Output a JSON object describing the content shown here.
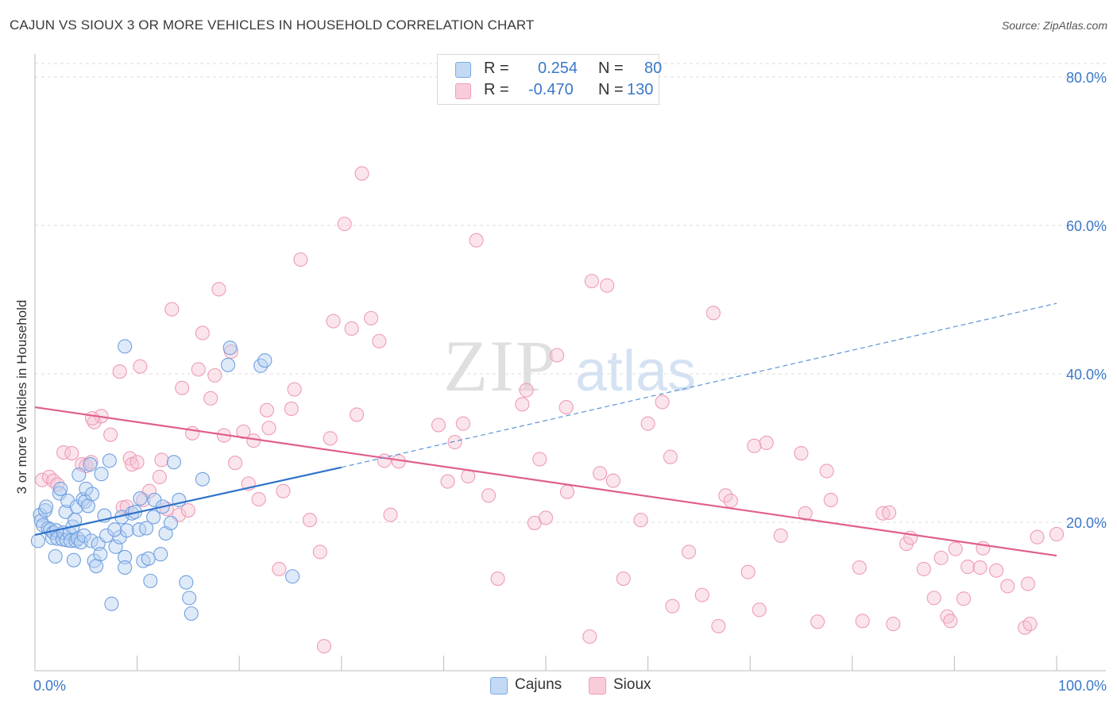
{
  "header": {
    "title": "CAJUN VS SIOUX 3 OR MORE VEHICLES IN HOUSEHOLD CORRELATION CHART",
    "source": "Source: ZipAtlas.com"
  },
  "legend": {
    "rows": [
      {
        "r_label": "R =",
        "r_value": "0.254",
        "n_label": "N =",
        "n_value": "80",
        "color": "#a8c8ef"
      },
      {
        "r_label": "R =",
        "r_value": "-0.470",
        "n_label": "N =",
        "n_value": "130",
        "color": "#f5b8cb"
      }
    ]
  },
  "bottom_legend": {
    "items": [
      {
        "label": "Cajuns",
        "color": "#a8c8ef"
      },
      {
        "label": "Sioux",
        "color": "#f5b8cb"
      }
    ]
  },
  "chart_data": {
    "type": "scatter",
    "title": "CAJUN VS SIOUX 3 OR MORE VEHICLES IN HOUSEHOLD CORRELATION CHART",
    "xlabel": "",
    "ylabel": "3 or more Vehicles in Household",
    "xlim": [
      0,
      100
    ],
    "ylim": [
      0,
      80
    ],
    "x_tick_labels": [
      "0.0%",
      "100.0%"
    ],
    "y_ticks": [
      20,
      40,
      60,
      80
    ],
    "y_tick_labels": [
      "20.0%",
      "40.0%",
      "60.0%",
      "80.0%"
    ],
    "grid": true,
    "legend_placement": "top-center",
    "watermark": "ZIPatlas",
    "series": [
      {
        "name": "Cajuns",
        "color": "#6fa0e0",
        "trend": {
          "x": [
            0,
            30,
            100
          ],
          "y": [
            18.3,
            27.4,
            49.5
          ],
          "solid_until": 30
        },
        "points": [
          [
            0.3,
            17.5
          ],
          [
            0.5,
            21.0
          ],
          [
            0.6,
            20.2
          ],
          [
            0.8,
            19.6
          ],
          [
            1.0,
            21.6
          ],
          [
            1.1,
            22.1
          ],
          [
            1.3,
            19.2
          ],
          [
            1.5,
            19.0
          ],
          [
            1.7,
            17.9
          ],
          [
            1.8,
            18.6
          ],
          [
            2.0,
            15.4
          ],
          [
            2.1,
            18.9
          ],
          [
            2.2,
            17.8
          ],
          [
            2.4,
            23.9
          ],
          [
            2.5,
            24.5
          ],
          [
            2.7,
            17.7
          ],
          [
            2.8,
            18.6
          ],
          [
            3.0,
            21.4
          ],
          [
            3.1,
            17.6
          ],
          [
            3.2,
            22.9
          ],
          [
            3.4,
            18.5
          ],
          [
            3.5,
            17.5
          ],
          [
            3.7,
            19.4
          ],
          [
            3.8,
            14.9
          ],
          [
            3.9,
            20.3
          ],
          [
            4.0,
            17.5
          ],
          [
            4.1,
            22.1
          ],
          [
            4.2,
            17.8
          ],
          [
            4.3,
            26.4
          ],
          [
            4.5,
            17.3
          ],
          [
            4.7,
            23.1
          ],
          [
            4.8,
            18.2
          ],
          [
            4.9,
            22.8
          ],
          [
            5.0,
            24.5
          ],
          [
            5.2,
            22.2
          ],
          [
            5.4,
            27.8
          ],
          [
            5.5,
            17.5
          ],
          [
            5.6,
            23.8
          ],
          [
            5.8,
            14.8
          ],
          [
            6.0,
            14.1
          ],
          [
            6.2,
            17.1
          ],
          [
            6.4,
            15.7
          ],
          [
            6.8,
            20.9
          ],
          [
            7.0,
            18.2
          ],
          [
            7.3,
            28.3
          ],
          [
            7.5,
            9.0
          ],
          [
            7.9,
            16.7
          ],
          [
            8.3,
            18.0
          ],
          [
            8.5,
            20.7
          ],
          [
            8.8,
            15.3
          ],
          [
            8.8,
            13.9
          ],
          [
            9.0,
            18.9
          ],
          [
            9.5,
            21.2
          ],
          [
            9.8,
            21.4
          ],
          [
            10.2,
            19.0
          ],
          [
            10.3,
            23.2
          ],
          [
            10.6,
            14.8
          ],
          [
            10.9,
            19.2
          ],
          [
            11.1,
            15.1
          ],
          [
            11.3,
            12.1
          ],
          [
            11.6,
            20.7
          ],
          [
            11.7,
            23.0
          ],
          [
            12.5,
            22.1
          ],
          [
            12.8,
            18.5
          ],
          [
            13.3,
            19.9
          ],
          [
            13.6,
            28.1
          ],
          [
            14.1,
            23.0
          ],
          [
            14.8,
            11.9
          ],
          [
            15.3,
            7.7
          ],
          [
            15.1,
            9.8
          ],
          [
            16.4,
            25.8
          ],
          [
            19.1,
            43.5
          ],
          [
            8.8,
            43.7
          ],
          [
            18.9,
            41.2
          ],
          [
            22.1,
            41.1
          ],
          [
            22.5,
            41.8
          ],
          [
            25.2,
            12.7
          ],
          [
            12.3,
            15.7
          ],
          [
            6.5,
            26.5
          ],
          [
            7.8,
            19.0
          ]
        ]
      },
      {
        "name": "Sioux",
        "color": "#ec89a6",
        "trend": {
          "x": [
            0,
            100
          ],
          "y": [
            35.5,
            15.5
          ]
        },
        "points": [
          [
            0.7,
            25.7
          ],
          [
            1.4,
            26.1
          ],
          [
            1.8,
            25.6
          ],
          [
            2.2,
            25.1
          ],
          [
            2.8,
            29.4
          ],
          [
            3.6,
            29.3
          ],
          [
            4.6,
            27.8
          ],
          [
            5.0,
            27.6
          ],
          [
            5.5,
            28.1
          ],
          [
            5.8,
            33.5
          ],
          [
            6.5,
            34.3
          ],
          [
            7.4,
            31.8
          ],
          [
            8.3,
            40.3
          ],
          [
            8.6,
            22.0
          ],
          [
            9.0,
            22.1
          ],
          [
            9.3,
            28.6
          ],
          [
            9.5,
            27.8
          ],
          [
            10.0,
            28.1
          ],
          [
            10.3,
            41.0
          ],
          [
            10.6,
            23.0
          ],
          [
            11.2,
            24.2
          ],
          [
            12.2,
            26.1
          ],
          [
            12.4,
            28.4
          ],
          [
            12.9,
            21.8
          ],
          [
            13.4,
            48.7
          ],
          [
            14.1,
            21.0
          ],
          [
            14.4,
            38.1
          ],
          [
            15.0,
            21.6
          ],
          [
            15.4,
            32.0
          ],
          [
            16.0,
            40.6
          ],
          [
            16.4,
            45.5
          ],
          [
            17.2,
            36.7
          ],
          [
            17.6,
            39.8
          ],
          [
            18.0,
            51.4
          ],
          [
            18.5,
            31.7
          ],
          [
            19.2,
            43.0
          ],
          [
            19.6,
            28.0
          ],
          [
            20.4,
            32.2
          ],
          [
            20.9,
            25.2
          ],
          [
            21.4,
            31.0
          ],
          [
            21.9,
            23.1
          ],
          [
            22.7,
            35.1
          ],
          [
            22.9,
            32.7
          ],
          [
            23.9,
            13.7
          ],
          [
            24.3,
            24.2
          ],
          [
            25.1,
            35.3
          ],
          [
            25.4,
            37.9
          ],
          [
            26.0,
            55.4
          ],
          [
            26.9,
            20.3
          ],
          [
            27.9,
            16.0
          ],
          [
            28.3,
            3.3
          ],
          [
            28.9,
            31.3
          ],
          [
            29.2,
            47.1
          ],
          [
            30.3,
            60.2
          ],
          [
            31.0,
            46.1
          ],
          [
            31.5,
            34.5
          ],
          [
            32.0,
            67.0
          ],
          [
            32.9,
            47.5
          ],
          [
            33.7,
            44.4
          ],
          [
            34.2,
            28.3
          ],
          [
            34.8,
            21.0
          ],
          [
            35.6,
            28.2
          ],
          [
            39.5,
            33.1
          ],
          [
            40.4,
            25.5
          ],
          [
            41.1,
            30.8
          ],
          [
            41.9,
            33.3
          ],
          [
            42.4,
            26.2
          ],
          [
            43.2,
            58.0
          ],
          [
            44.4,
            23.6
          ],
          [
            45.3,
            12.4
          ],
          [
            47.7,
            35.9
          ],
          [
            48.1,
            37.8
          ],
          [
            48.9,
            19.9
          ],
          [
            49.4,
            28.5
          ],
          [
            50.0,
            20.6
          ],
          [
            51.1,
            42.5
          ],
          [
            52.0,
            35.5
          ],
          [
            52.1,
            24.1
          ],
          [
            54.3,
            4.6
          ],
          [
            54.5,
            52.5
          ],
          [
            55.3,
            26.6
          ],
          [
            56.0,
            51.9
          ],
          [
            56.6,
            25.6
          ],
          [
            57.6,
            12.4
          ],
          [
            59.3,
            20.3
          ],
          [
            60.0,
            33.3
          ],
          [
            61.4,
            36.2
          ],
          [
            62.2,
            28.8
          ],
          [
            62.4,
            8.7
          ],
          [
            64.0,
            16.0
          ],
          [
            65.3,
            10.2
          ],
          [
            66.4,
            48.2
          ],
          [
            66.9,
            6.0
          ],
          [
            67.6,
            23.6
          ],
          [
            68.1,
            22.9
          ],
          [
            69.8,
            13.3
          ],
          [
            70.4,
            30.3
          ],
          [
            70.9,
            8.2
          ],
          [
            71.6,
            30.7
          ],
          [
            73.0,
            18.2
          ],
          [
            75.0,
            29.3
          ],
          [
            75.4,
            21.2
          ],
          [
            76.6,
            6.6
          ],
          [
            77.5,
            26.9
          ],
          [
            77.9,
            23.0
          ],
          [
            80.7,
            13.9
          ],
          [
            81.0,
            6.7
          ],
          [
            83.0,
            21.2
          ],
          [
            83.6,
            21.3
          ],
          [
            84.0,
            6.3
          ],
          [
            85.3,
            17.1
          ],
          [
            85.7,
            17.9
          ],
          [
            87.0,
            13.7
          ],
          [
            88.0,
            9.8
          ],
          [
            88.7,
            15.2
          ],
          [
            89.3,
            7.3
          ],
          [
            89.6,
            6.7
          ],
          [
            90.1,
            16.4
          ],
          [
            90.9,
            9.7
          ],
          [
            91.3,
            14.0
          ],
          [
            92.5,
            13.9
          ],
          [
            92.8,
            16.5
          ],
          [
            94.1,
            13.5
          ],
          [
            95.2,
            11.4
          ],
          [
            96.9,
            5.8
          ],
          [
            97.2,
            11.7
          ],
          [
            97.4,
            6.3
          ],
          [
            98.1,
            18.0
          ],
          [
            100.0,
            18.4
          ],
          [
            5.6,
            34.0
          ]
        ]
      }
    ]
  }
}
